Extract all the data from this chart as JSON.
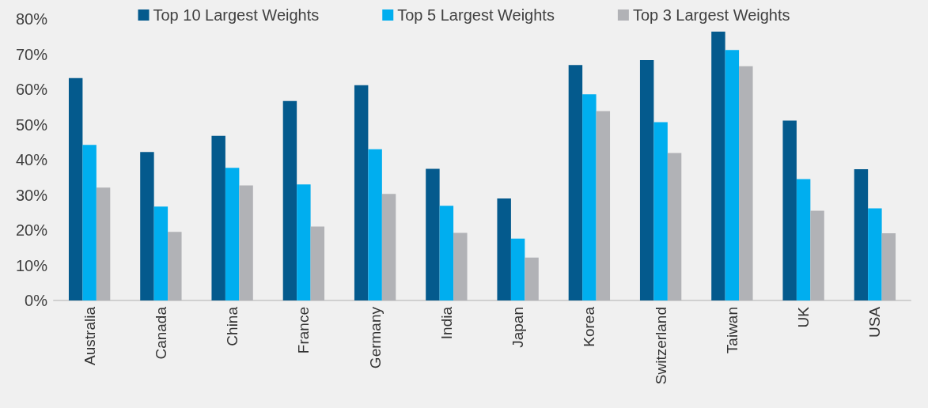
{
  "chart_data": {
    "type": "bar",
    "categories": [
      "Australia",
      "Canada",
      "China",
      "France",
      "Germany",
      "India",
      "Japan",
      "Korea",
      "Switzerland",
      "Taiwan",
      "UK",
      "USA"
    ],
    "series": [
      {
        "name": "Top 10 Largest Weights",
        "color": "#045a8d",
        "values": [
          63.2,
          42.2,
          46.8,
          56.7,
          61.2,
          37.4,
          29.0,
          66.9,
          68.3,
          76.4,
          51.1,
          37.3
        ]
      },
      {
        "name": "Top 5 Largest Weights",
        "color": "#00aeef",
        "values": [
          44.2,
          26.7,
          37.7,
          33.0,
          43.0,
          26.9,
          17.6,
          58.6,
          50.7,
          71.2,
          34.5,
          26.2
        ]
      },
      {
        "name": "Top 3 Largest Weights",
        "color": "#b1b2b6",
        "values": [
          32.1,
          19.5,
          32.7,
          21.0,
          30.3,
          19.2,
          12.2,
          53.8,
          41.9,
          66.6,
          25.5,
          19.1
        ]
      }
    ],
    "ylim": [
      0,
      80
    ],
    "yticks": [
      {
        "value": 0,
        "label": "0%"
      },
      {
        "value": 10,
        "label": "10%"
      },
      {
        "value": 20,
        "label": "20%"
      },
      {
        "value": 30,
        "label": "30%"
      },
      {
        "value": 40,
        "label": "40%"
      },
      {
        "value": 50,
        "label": "50%"
      },
      {
        "value": 60,
        "label": "60%"
      },
      {
        "value": 70,
        "label": "70%"
      },
      {
        "value": 80,
        "label": "80%"
      }
    ],
    "grid": false,
    "legend": "top"
  }
}
